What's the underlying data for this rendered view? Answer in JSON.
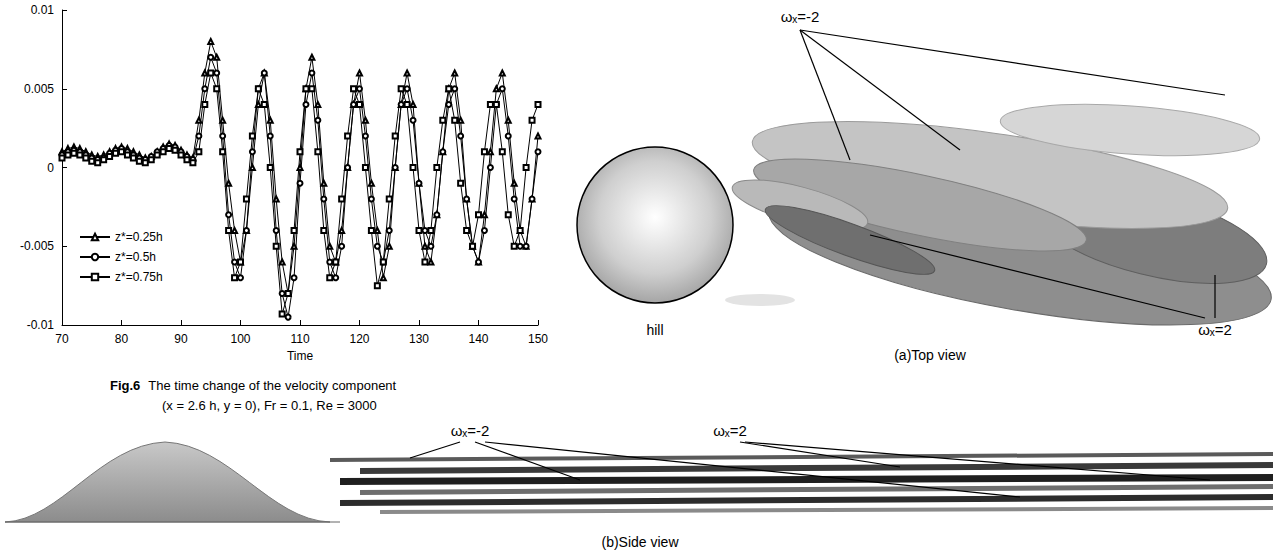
{
  "chart_data": {
    "type": "line",
    "x_label": "Time",
    "x": [
      70,
      71,
      72,
      73,
      74,
      75,
      76,
      77,
      78,
      79,
      80,
      81,
      82,
      83,
      84,
      85,
      86,
      87,
      88,
      89,
      90,
      91,
      92,
      93,
      94,
      95,
      96,
      97,
      98,
      99,
      100,
      101,
      102,
      103,
      104,
      105,
      106,
      107,
      108,
      109,
      110,
      111,
      112,
      113,
      114,
      115,
      116,
      117,
      118,
      119,
      120,
      121,
      122,
      123,
      124,
      125,
      126,
      127,
      128,
      129,
      130,
      131,
      132,
      133,
      134,
      135,
      136,
      137,
      138,
      139,
      140,
      141,
      142,
      143,
      144,
      145,
      146,
      147,
      148,
      149,
      150
    ],
    "series": [
      {
        "name": "z*=0.25h",
        "color": "#000000",
        "marker": "triangle",
        "line_style": "solid",
        "values": [
          0.001,
          0.0012,
          0.0013,
          0.0012,
          0.001,
          0.0008,
          0.0007,
          0.0008,
          0.001,
          0.0012,
          0.0013,
          0.0012,
          0.001,
          0.0008,
          0.0006,
          0.0007,
          0.001,
          0.0013,
          0.0015,
          0.0014,
          0.0011,
          0.0008,
          0.0006,
          0.003,
          0.006,
          0.008,
          0.007,
          0.003,
          -0.001,
          -0.004,
          -0.006,
          -0.004,
          0.0,
          0.004,
          0.006,
          0.003,
          -0.002,
          -0.006,
          -0.008,
          -0.005,
          0.0,
          0.005,
          0.007,
          0.004,
          -0.001,
          -0.005,
          -0.006,
          -0.004,
          0.0,
          0.004,
          0.006,
          0.003,
          -0.001,
          -0.004,
          -0.007,
          -0.005,
          0.0,
          0.004,
          0.006,
          0.004,
          -0.001,
          -0.005,
          -0.006,
          -0.003,
          0.001,
          0.005,
          0.006,
          0.003,
          -0.002,
          -0.005,
          -0.006,
          -0.003,
          0.001,
          0.005,
          0.006,
          0.003,
          -0.001,
          -0.004,
          -0.005,
          -0.002,
          0.002
        ]
      },
      {
        "name": "z*=0.5h",
        "color": "#000000",
        "marker": "circle",
        "line_style": "solid",
        "values": [
          0.0008,
          0.001,
          0.0011,
          0.001,
          0.0008,
          0.0006,
          0.0005,
          0.0006,
          0.0009,
          0.0011,
          0.0012,
          0.001,
          0.0008,
          0.0006,
          0.0005,
          0.0007,
          0.001,
          0.0012,
          0.0014,
          0.0013,
          0.001,
          0.0007,
          0.0005,
          0.002,
          0.005,
          0.007,
          0.006,
          0.002,
          -0.003,
          -0.006,
          -0.007,
          -0.004,
          0.001,
          0.005,
          0.006,
          0.002,
          -0.004,
          -0.008,
          -0.0095,
          -0.007,
          -0.001,
          0.004,
          0.006,
          0.003,
          -0.002,
          -0.006,
          -0.007,
          -0.005,
          0.0,
          0.004,
          0.005,
          0.002,
          -0.002,
          -0.005,
          -0.006,
          -0.004,
          0.0,
          0.004,
          0.005,
          0.003,
          -0.001,
          -0.004,
          -0.005,
          -0.003,
          0.001,
          0.004,
          0.005,
          0.002,
          -0.002,
          -0.005,
          -0.006,
          -0.004,
          0.0,
          0.004,
          0.005,
          0.002,
          -0.002,
          -0.005,
          -0.005,
          -0.002,
          0.001
        ]
      },
      {
        "name": "z*=0.75h",
        "color": "#000000",
        "marker": "square",
        "line_style": "solid",
        "values": [
          0.0006,
          0.0008,
          0.0009,
          0.0008,
          0.0006,
          0.0004,
          0.0003,
          0.0005,
          0.0007,
          0.0009,
          0.001,
          0.0008,
          0.0006,
          0.0004,
          0.0003,
          0.0005,
          0.0008,
          0.001,
          0.0012,
          0.0011,
          0.0008,
          0.0005,
          0.0003,
          0.001,
          0.004,
          0.006,
          0.005,
          0.001,
          -0.004,
          -0.007,
          -0.006,
          -0.002,
          0.002,
          0.005,
          0.004,
          0.0,
          -0.005,
          -0.0093,
          -0.008,
          -0.004,
          0.001,
          0.005,
          0.005,
          0.001,
          -0.004,
          -0.007,
          -0.006,
          -0.002,
          0.002,
          0.005,
          0.004,
          0.0,
          -0.004,
          -0.0075,
          -0.006,
          -0.002,
          0.002,
          0.005,
          0.004,
          0.0,
          -0.004,
          -0.006,
          -0.004,
          0.0,
          0.003,
          0.005,
          0.003,
          -0.001,
          -0.004,
          -0.005,
          -0.003,
          0.001,
          0.004,
          0.004,
          0.001,
          -0.003,
          -0.005,
          -0.004,
          0.0,
          0.003,
          0.004
        ]
      }
    ],
    "xlim": [
      70,
      150
    ],
    "xticks": [
      70,
      80,
      90,
      100,
      110,
      120,
      130,
      140,
      150
    ],
    "ylim": [
      -0.01,
      0.01
    ],
    "yticks": [
      -0.01,
      -0.005,
      0,
      0.005,
      0.01
    ],
    "grid": false,
    "legend": "lower left"
  },
  "caption": {
    "figure": "Fig.6",
    "line1": "The time change of the velocity component",
    "line2": "(x = 2.6 h, y = 0), Fr = 0.1, Re = 3000"
  },
  "top_view": {
    "label": "(a)Top view",
    "hill_label": "hill",
    "annotations": [
      "ωₓ=-2",
      "ωₓ=2"
    ]
  },
  "side_view": {
    "label": "(b)Side view",
    "annotations": [
      "ωₓ=-2",
      "ωₓ=2"
    ]
  }
}
